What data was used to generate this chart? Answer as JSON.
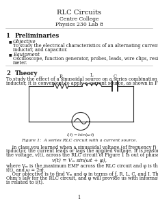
{
  "title": "RLC Circuits",
  "subtitle1": "Centre College",
  "subtitle2": "Physics 230 Lab 8",
  "section1_num": "1",
  "section1_title": "Preliminaries",
  "bullet1_header": "Objective",
  "bullet1_line1": "To study the electrical characteristics of an alternating current circuit containing a resistor,",
  "bullet1_line2": "inductor, and capacitor.",
  "bullet2_header": "Equipment",
  "bullet2_line1": "Oscilloscope, function generator, probes, leads, wire clips, resistor, capacitor, inductor, RLC",
  "bullet2_line2": "meter.",
  "section2_num": "2",
  "section2_title": "Theory",
  "theory_line1": "To study the effect of a sinusoidal source on a series combination of a resistor, capacitor, and an",
  "theory_line2": "inductor, it is convenient to apply a current source, as shown in Figure 1.",
  "figure_caption": "Figure 1:  A series RLC circuit with a current source.",
  "para1_line1": "    In class you learned when a sinusoidal voltage (of frequency ƒ) is applied to a capacitor or an",
  "para1_line2": "inductor, the current leads or lags the applied voltage. It is reasonable, therefore, to assume that",
  "para1_line3": "the voltage, v(t), across the RLC circuit of Figure 1 is out of phase with the current, i(t):",
  "equation1": "v(t) = Vₘ sin(ωt + φ),",
  "para2_line1": "where Vₘ is the maximum EMF across the RLC circuit and φ is the phase angle between v(t) and",
  "para2_line2": "i(t), and ω = 2πƒ.",
  "para3_line1": "    Our objective is to find Vₘ and φ in terms of ƒ, R, L, C, and I. The equation for Vₘ will be",
  "para3_line2": "Ohm’s law for the RLC circuit, and φ will provide us with information about how the voltage, v(t)",
  "para3_line3": "is related to i(t).",
  "page_num": "1",
  "bg_color": "#ffffff",
  "text_color": "#1a1a1a",
  "title_color": "#1a1a1a",
  "circuit_color": "#2a2a2a"
}
